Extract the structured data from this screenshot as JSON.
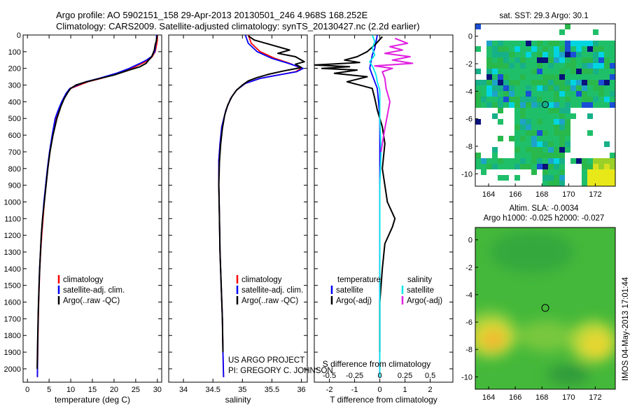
{
  "header": {
    "line1": "Argo profile: AO 5902151_158 29-Apr-2013 20130501_246 4.968S 168.252E",
    "line2": "Climatology: CARS2009. Satellite-adjusted climatology: synTS_20130427.nc (2.2d earlier)"
  },
  "footer": {
    "project": "US ARGO PROJECT",
    "pi": "PI: GREGORY C. JOHNSON",
    "stamp": "IMOS 04-May-2013 17:01:44"
  },
  "colors": {
    "climatology": "#ff0000",
    "satellite": "#0000ff",
    "argo": "#000000",
    "diff_temp_sat": "#0000ff",
    "diff_temp_argo": "#000000",
    "diff_sal_sat": "#00e5ee",
    "diff_sal_argo": "#e020e0"
  },
  "chart_data": [
    {
      "id": "temperature",
      "type": "line",
      "xlabel": "temperature (deg C)",
      "ylabel": "",
      "xlim": [
        -1,
        31
      ],
      "xticks": [
        0,
        5,
        10,
        15,
        20,
        25,
        30
      ],
      "ylim": [
        2080,
        0
      ],
      "yticks": [
        0,
        100,
        200,
        300,
        400,
        500,
        600,
        700,
        800,
        900,
        1000,
        1100,
        1200,
        1300,
        1400,
        1500,
        1600,
        1700,
        1800,
        1900,
        2000
      ],
      "legend": [
        "climatology",
        "satellite-adj. clim.",
        "Argo(..raw -QC)"
      ],
      "legend_position": "lower-middle",
      "series": [
        {
          "name": "climatology",
          "color": "#ff0000",
          "x": [
            30,
            30,
            29.8,
            29.5,
            28.8,
            28,
            26.5,
            24,
            21,
            17,
            14,
            12,
            10,
            9,
            8,
            7.2,
            6.5,
            5.8,
            5.2,
            4.7,
            4.3,
            3.9,
            3.6,
            3.3,
            3.05,
            2.85,
            2.6,
            2.45,
            2.3
          ],
          "y": [
            0,
            30,
            60,
            100,
            130,
            150,
            170,
            200,
            230,
            260,
            280,
            300,
            320,
            350,
            400,
            450,
            500,
            600,
            700,
            800,
            900,
            1000,
            1100,
            1200,
            1300,
            1400,
            1600,
            1800,
            2050
          ]
        },
        {
          "name": "satellite-adj. clim.",
          "color": "#0000ff",
          "x": [
            29.8,
            29.8,
            29.6,
            29.4,
            28.6,
            27.5,
            26,
            23.5,
            20.5,
            16.5,
            13.5,
            11.6,
            9.8,
            8.9,
            7.9,
            7.1,
            6.4,
            5.7,
            5.1,
            4.6,
            4.2,
            3.8,
            3.5,
            3.2,
            3,
            2.8,
            2.55,
            2.4,
            2.3
          ],
          "y": [
            0,
            30,
            60,
            100,
            130,
            150,
            170,
            200,
            230,
            260,
            280,
            300,
            320,
            350,
            400,
            450,
            500,
            600,
            700,
            800,
            900,
            1000,
            1100,
            1200,
            1300,
            1400,
            1600,
            1800,
            2050
          ]
        },
        {
          "name": "Argo(..raw -QC)",
          "color": "#000000",
          "x": [
            29.9,
            29.8,
            29.5,
            29.3,
            29,
            28.7,
            28,
            27.4,
            26,
            23.5,
            20,
            16,
            13,
            11.2,
            10,
            9.4,
            8.5,
            7.7,
            6.8,
            5.9,
            5.2,
            4.7,
            4.3,
            3.9,
            3.5,
            3.2,
            3,
            2.75,
            2.5,
            2.35,
            2.25
          ],
          "y": [
            5,
            30,
            60,
            90,
            110,
            130,
            150,
            170,
            190,
            210,
            240,
            265,
            285,
            300,
            320,
            340,
            380,
            430,
            500,
            600,
            700,
            800,
            900,
            1000,
            1100,
            1200,
            1300,
            1450,
            1650,
            1850,
            2000
          ]
        }
      ]
    },
    {
      "id": "salinity",
      "type": "line",
      "xlabel": "salinity",
      "xlim": [
        33.75,
        36.1
      ],
      "xticks": [
        34,
        34.5,
        35,
        35.5,
        36
      ],
      "ylim": [
        2080,
        0
      ],
      "legend": [
        "climatology",
        "satellite-adj. clim.",
        "Argo(..raw -QC)"
      ],
      "legend_position": "lower-right",
      "series": [
        {
          "name": "climatology",
          "color": "#ff0000",
          "x": [
            35.1,
            35.15,
            35.3,
            35.55,
            35.8,
            36,
            35.9,
            35.6,
            35.3,
            35.05,
            34.9,
            34.8,
            34.72,
            34.65,
            34.62,
            34.6,
            34.6,
            34.61,
            34.62,
            34.64,
            34.66,
            34.67,
            34.68
          ],
          "y": [
            0,
            50,
            100,
            140,
            170,
            200,
            220,
            240,
            260,
            290,
            330,
            380,
            450,
            550,
            650,
            750,
            900,
            1100,
            1300,
            1500,
            1700,
            1900,
            2050
          ]
        },
        {
          "name": "satellite-adj. clim.",
          "color": "#0000ff",
          "x": [
            35.05,
            35.1,
            35.25,
            35.5,
            35.78,
            36.03,
            35.92,
            35.6,
            35.3,
            35.05,
            34.9,
            34.8,
            34.72,
            34.65,
            34.62,
            34.6,
            34.6,
            34.61,
            34.62,
            34.64,
            34.66,
            34.67,
            34.68
          ],
          "y": [
            0,
            50,
            100,
            140,
            170,
            200,
            220,
            240,
            260,
            290,
            330,
            380,
            450,
            550,
            650,
            750,
            900,
            1100,
            1300,
            1500,
            1700,
            1900,
            2050
          ]
        },
        {
          "name": "Argo(..raw -QC)",
          "color": "#000000",
          "x": [
            35.1,
            35.2,
            35.5,
            35.8,
            35.6,
            35.9,
            36.05,
            35.9,
            36,
            35.7,
            35.45,
            35.25,
            35.1,
            35,
            34.9,
            34.82,
            34.75,
            34.7,
            34.66,
            34.63,
            34.61,
            34.6,
            34.61,
            34.62,
            34.64,
            34.66,
            34.67
          ],
          "y": [
            5,
            30,
            60,
            90,
            110,
            130,
            160,
            175,
            195,
            215,
            235,
            255,
            275,
            300,
            330,
            370,
            420,
            480,
            560,
            660,
            760,
            900,
            1100,
            1300,
            1500,
            1700,
            1900
          ]
        }
      ]
    },
    {
      "id": "difference",
      "type": "line",
      "xlabel": "T difference from climatology",
      "xlabel_top": "S difference from climatology",
      "xlim": [
        -2.6,
        2.9
      ],
      "xticks": [
        -2,
        -1,
        0,
        1,
        2
      ],
      "xticks_sal_positions": [
        -2,
        -1,
        0,
        1,
        2
      ],
      "xticks_sal": [
        "-0.5",
        "-0.25",
        "0",
        "0.25",
        "0.5"
      ],
      "ylim": [
        2080,
        0
      ],
      "legend_temperature": {
        "title": "temperature",
        "items": [
          "satellite",
          "Argo(-adj)"
        ]
      },
      "legend_salinity": {
        "title": "salinity",
        "items": [
          "satellite",
          "Argo(-adj)"
        ]
      },
      "series": [
        {
          "name": "temperature satellite",
          "color": "#0000ff",
          "x": [
            -0.1,
            -0.15,
            -0.2,
            -0.3,
            -0.35,
            -0.4,
            -0.3,
            -0.2,
            -0.1,
            -0.05,
            0,
            0,
            0,
            0,
            0,
            0,
            0,
            0
          ],
          "y": [
            0,
            40,
            80,
            120,
            160,
            200,
            240,
            280,
            320,
            400,
            500,
            700,
            900,
            1100,
            1300,
            1500,
            1800,
            2050
          ]
        },
        {
          "name": "temperature Argo(-adj)",
          "color": "#000000",
          "x": [
            0.1,
            -0.2,
            -0.5,
            -0.9,
            -1.4,
            -0.8,
            -2.6,
            -1.2,
            -2.3,
            -0.9,
            -1.8,
            -0.5,
            -1.3,
            -0.3,
            -0.2,
            -0.1,
            0.1,
            0.2,
            0.1,
            0.2,
            0.3,
            0.6,
            0.5,
            0.2,
            0.1,
            0,
            0
          ],
          "y": [
            10,
            60,
            100,
            130,
            150,
            165,
            180,
            190,
            200,
            210,
            230,
            250,
            280,
            320,
            380,
            450,
            550,
            650,
            800,
            900,
            1000,
            1100,
            1150,
            1250,
            1400,
            1600,
            1900
          ]
        },
        {
          "name": "salinity satellite",
          "color": "#00e5ee",
          "x": [
            -0.3,
            -0.2,
            -0.3,
            -0.2,
            -0.4,
            -0.25,
            -0.15,
            -0.1,
            0,
            0,
            0,
            0.05,
            0,
            0,
            0,
            0
          ],
          "y": [
            0,
            40,
            80,
            120,
            160,
            200,
            240,
            280,
            330,
            400,
            500,
            700,
            900,
            1200,
            1600,
            2050
          ]
        },
        {
          "name": "salinity Argo(-adj)",
          "color": "#e020e0",
          "x": [
            0.6,
            1.1,
            0.4,
            0.9,
            0.2,
            1.2,
            0.5,
            1.3,
            -0.2,
            0.5,
            0.1,
            0.2,
            0.25,
            0.4,
            0.3,
            0.2,
            0.1,
            0.05
          ],
          "y": [
            20,
            50,
            70,
            90,
            110,
            130,
            150,
            170,
            185,
            200,
            220,
            260,
            320,
            400,
            480,
            560,
            650,
            700
          ]
        }
      ]
    },
    {
      "id": "sst_map",
      "type": "heatmap",
      "title": "sat. SST: 29.3  Argo: 30.1",
      "xlim": [
        163,
        173.5
      ],
      "xticks": [
        164,
        166,
        168,
        170,
        172
      ],
      "ylim": [
        -10.9,
        0.9
      ],
      "yticks": [
        0,
        -2,
        -4,
        -6,
        -8,
        -10
      ],
      "marker": {
        "lon": 168.252,
        "lat": -4.968
      }
    },
    {
      "id": "sla_map",
      "type": "heatmap",
      "title": "Altim. SLA: -0.0034",
      "subtitle": "Argo h1000: -0.025 h2000: -0.027",
      "xlim": [
        163,
        173.5
      ],
      "xticks": [
        164,
        166,
        168,
        170,
        172
      ],
      "ylim": [
        -10.9,
        0.9
      ],
      "yticks": [
        0,
        -2,
        -4,
        -6,
        -8,
        -10
      ],
      "marker": {
        "lon": 168.252,
        "lat": -4.968
      }
    }
  ]
}
